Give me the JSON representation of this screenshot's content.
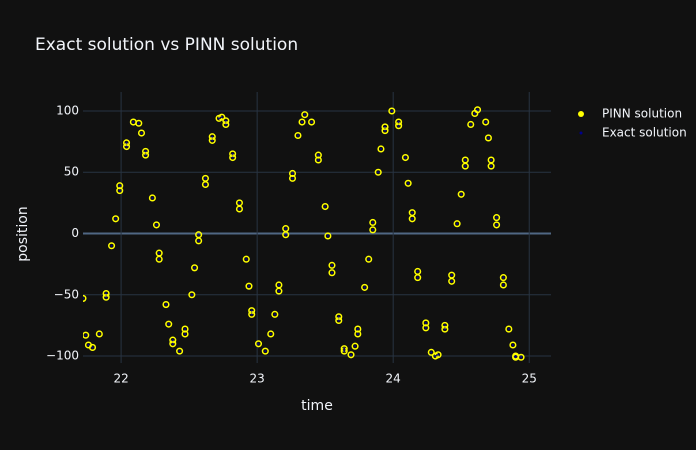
{
  "chart_data": {
    "type": "scatter",
    "title": "Exact solution vs PINN solution",
    "xlabel": "time",
    "ylabel": "position",
    "xlim": [
      21.72,
      25.16
    ],
    "ylim": [
      -105.7,
      115.5
    ],
    "xticks": [
      22,
      23,
      24,
      25
    ],
    "yticks": [
      {
        "value": -100,
        "label": "−100"
      },
      {
        "value": -50,
        "label": "−50"
      },
      0,
      50,
      100
    ],
    "grid": true,
    "legend": "right",
    "series": [
      {
        "name": "PINN solution",
        "color": "#ffff00",
        "x": [
          21.72,
          21.74,
          21.76,
          21.79,
          21.84,
          21.89,
          21.89,
          21.93,
          21.96,
          21.99,
          21.99,
          22.04,
          22.04,
          22.09,
          22.13,
          22.15,
          22.18,
          22.18,
          22.23,
          22.26,
          22.28,
          22.28,
          22.33,
          22.35,
          22.38,
          22.38,
          22.43,
          22.47,
          22.47,
          22.52,
          22.54,
          22.57,
          22.57,
          22.62,
          22.62,
          22.67,
          22.67,
          22.72,
          22.74,
          22.77,
          22.77,
          22.82,
          22.82,
          22.87,
          22.87,
          22.92,
          22.94,
          22.96,
          22.96,
          23.01,
          23.06,
          23.1,
          23.13,
          23.16,
          23.16,
          23.21,
          23.21,
          23.26,
          23.26,
          23.3,
          23.33,
          23.35,
          23.4,
          23.45,
          23.45,
          23.5,
          23.52,
          23.55,
          23.55,
          23.6,
          23.6,
          23.64,
          23.64,
          23.69,
          23.72,
          23.74,
          23.74,
          23.79,
          23.82,
          23.85,
          23.85,
          23.89,
          23.91,
          23.94,
          23.94,
          23.99,
          24.04,
          24.04,
          24.09,
          24.11,
          24.14,
          24.14,
          24.18,
          24.18,
          24.24,
          24.24,
          24.28,
          24.31,
          24.33,
          24.38,
          24.38,
          24.43,
          24.43,
          24.47,
          24.5,
          24.53,
          24.53,
          24.57,
          24.6,
          24.62,
          24.68,
          24.7,
          24.72,
          24.72,
          24.76,
          24.76,
          24.81,
          24.81,
          24.85,
          24.88,
          24.9,
          24.9,
          24.94
        ],
        "values": [
          -53,
          -83,
          -91,
          -93,
          -82,
          -49,
          -52,
          -10,
          12,
          35,
          39,
          71,
          74,
          91,
          90,
          82,
          67,
          64,
          29,
          7,
          -16,
          -21,
          -58,
          -74,
          -87,
          -90,
          -96,
          -82,
          -78,
          -50,
          -28,
          -6,
          -1,
          40,
          45,
          76,
          79,
          94,
          95,
          89,
          92,
          65,
          62,
          25,
          20,
          -21,
          -43,
          -63,
          -66,
          -90,
          -96,
          -82,
          -66,
          -42,
          -47,
          -1,
          4,
          45,
          49,
          80,
          91,
          97,
          91,
          64,
          60,
          22,
          -2,
          -26,
          -32,
          -68,
          -71,
          -94,
          -96,
          -99,
          -92,
          -78,
          -82,
          -44,
          -21,
          3,
          9,
          50,
          69,
          84,
          87,
          100,
          91,
          88,
          62,
          41,
          17,
          12,
          -31,
          -36,
          -73,
          -77,
          -97,
          -100,
          -99,
          -75,
          -78,
          -34,
          -39,
          8,
          32,
          55,
          60,
          89,
          98,
          101,
          91,
          78,
          60,
          55,
          13,
          7,
          -36,
          -42,
          -78,
          -91,
          -100,
          -101,
          -101
        ]
      },
      {
        "name": "Exact solution",
        "color": "#00008b",
        "x": [
          21.72,
          21.74,
          21.76,
          21.79,
          21.84,
          21.89,
          21.89,
          21.93,
          21.96,
          21.99,
          21.99,
          22.04,
          22.04,
          22.09,
          22.13,
          22.15,
          22.18,
          22.18,
          22.23,
          22.26,
          22.28,
          22.28,
          22.33,
          22.35,
          22.38,
          22.38,
          22.43,
          22.47,
          22.47,
          22.52,
          22.54,
          22.57,
          22.57,
          22.62,
          22.62,
          22.67,
          22.67,
          22.72,
          22.74,
          22.77,
          22.77,
          22.82,
          22.82,
          22.87,
          22.87,
          22.92,
          22.94,
          22.96,
          22.96,
          23.01,
          23.06,
          23.1,
          23.13,
          23.16,
          23.16,
          23.21,
          23.21,
          23.26,
          23.26,
          23.3,
          23.33,
          23.35,
          23.4,
          23.45,
          23.45,
          23.5,
          23.52,
          23.55,
          23.55,
          23.6,
          23.6,
          23.64,
          23.64,
          23.69,
          23.72,
          23.74,
          23.74,
          23.79,
          23.82,
          23.85,
          23.85,
          23.89,
          23.91,
          23.94,
          23.94,
          23.99,
          24.04,
          24.04,
          24.09,
          24.11,
          24.14,
          24.14,
          24.18,
          24.18,
          24.24,
          24.24,
          24.28,
          24.31,
          24.33,
          24.38,
          24.38,
          24.43,
          24.43,
          24.47,
          24.5,
          24.53,
          24.53,
          24.57,
          24.6,
          24.62,
          24.68,
          24.7,
          24.72,
          24.72,
          24.76,
          24.76,
          24.81,
          24.81,
          24.85,
          24.88,
          24.9,
          24.9,
          24.94
        ],
        "values": [
          -53,
          -83,
          -91,
          -93,
          -82,
          -49,
          -52,
          -10,
          12,
          35,
          39,
          71,
          74,
          91,
          90,
          82,
          67,
          64,
          29,
          7,
          -16,
          -21,
          -58,
          -74,
          -87,
          -90,
          -96,
          -82,
          -78,
          -50,
          -28,
          -6,
          -1,
          40,
          45,
          76,
          79,
          94,
          95,
          89,
          92,
          65,
          62,
          25,
          20,
          -21,
          -43,
          -63,
          -66,
          -90,
          -96,
          -82,
          -66,
          -42,
          -47,
          -1,
          4,
          45,
          49,
          80,
          91,
          97,
          91,
          64,
          60,
          22,
          -2,
          -26,
          -32,
          -68,
          -71,
          -94,
          -96,
          -99,
          -92,
          -78,
          -82,
          -44,
          -21,
          3,
          9,
          50,
          69,
          84,
          87,
          100,
          91,
          88,
          62,
          41,
          17,
          12,
          -31,
          -36,
          -73,
          -77,
          -97,
          -100,
          -99,
          -75,
          -78,
          -34,
          -39,
          8,
          32,
          55,
          60,
          89,
          98,
          101,
          91,
          78,
          60,
          55,
          13,
          7,
          -36,
          -42,
          -78,
          -91,
          -100,
          -101,
          -101
        ]
      }
    ]
  }
}
